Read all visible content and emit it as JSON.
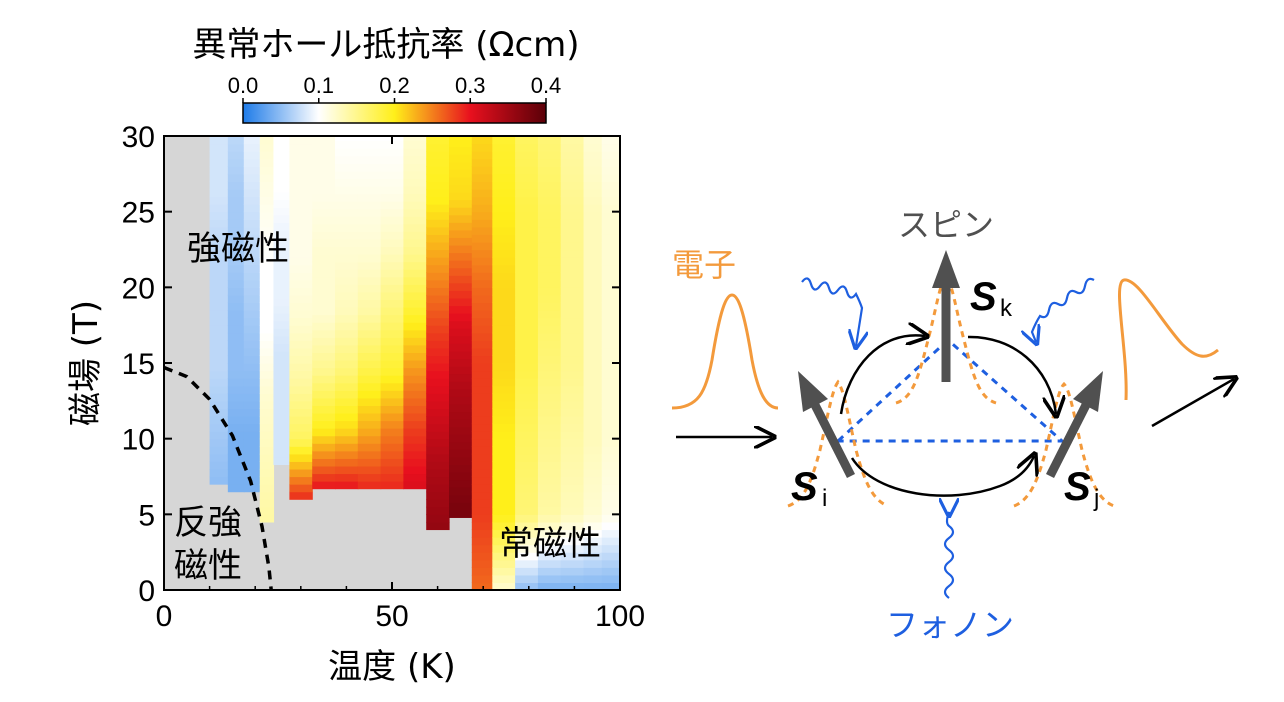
{
  "chart_data": {
    "type": "heatmap",
    "title": "異常ホール抵抗率 (Ωcm)",
    "xlabel": "温度 (K)",
    "ylabel": "磁場 (T)",
    "xlim": [
      0,
      100
    ],
    "ylim": [
      0,
      30
    ],
    "xticks": [
      "0",
      "50",
      "100"
    ],
    "yticks": [
      "0",
      "5",
      "10",
      "15",
      "20",
      "25",
      "30"
    ],
    "colorbar": {
      "range": [
        0.0,
        0.4
      ],
      "ticks": [
        "0.0",
        "0.1",
        "0.2",
        "0.3",
        "0.4"
      ],
      "colors": [
        "#1e7be8",
        "#ffffff",
        "#ffef1a",
        "#e8101e",
        "#5a0008"
      ]
    },
    "regions": {
      "ferromagnetic": "強磁性",
      "antiferro_line1": "反強",
      "antiferro_line2": "磁性",
      "paramagnetic": "常磁性"
    },
    "phase_boundary": [
      [
        0,
        14.7
      ],
      [
        5,
        14.1
      ],
      [
        10,
        12.6
      ],
      [
        15,
        10.2
      ],
      [
        19,
        7.2
      ],
      [
        21.5,
        4.2
      ],
      [
        23,
        1.5
      ],
      [
        23.5,
        0
      ]
    ],
    "columns": [
      {
        "t0": 10,
        "t1": 14,
        "hmin": 7.0,
        "v": [
          0.05,
          0.06,
          0.07,
          0.07,
          0.07,
          0.08,
          0.08
        ]
      },
      {
        "t0": 14,
        "t1": 17.5,
        "hmin": 6.5,
        "v": [
          0.04,
          0.04,
          0.05,
          0.05,
          0.06,
          0.06,
          0.07
        ]
      },
      {
        "t0": 17.5,
        "t1": 21,
        "hmin": 6.5,
        "v": [
          0.04,
          0.04,
          0.05,
          0.06,
          0.07,
          0.08,
          0.09
        ]
      },
      {
        "t0": 21,
        "t1": 24,
        "hmin": 4.5,
        "v": [
          0.14,
          0.13,
          0.12,
          0.1,
          0.1,
          0.11,
          0.12
        ]
      },
      {
        "t0": 24,
        "t1": 27.5,
        "hmin": 8.3,
        "v": [
          0.08,
          0.08,
          0.08,
          0.09,
          0.09,
          0.1,
          0.1
        ]
      },
      {
        "t0": 27.5,
        "t1": 32.5,
        "hmin": 6.0,
        "v": [
          0.29,
          0.17,
          0.14,
          0.12,
          0.11,
          0.11,
          0.11
        ]
      },
      {
        "t0": 32.5,
        "t1": 37.5,
        "hmin": 6.7,
        "v": [
          0.3,
          0.2,
          0.15,
          0.12,
          0.12,
          0.11,
          0.11
        ]
      },
      {
        "t0": 37.5,
        "t1": 42.5,
        "hmin": 6.7,
        "v": [
          0.3,
          0.21,
          0.16,
          0.13,
          0.12,
          0.11,
          0.1
        ]
      },
      {
        "t0": 42.5,
        "t1": 47.5,
        "hmin": 6.7,
        "v": [
          0.29,
          0.23,
          0.18,
          0.14,
          0.12,
          0.11,
          0.1
        ]
      },
      {
        "t0": 47.5,
        "t1": 52.5,
        "hmin": 6.7,
        "v": [
          0.29,
          0.25,
          0.19,
          0.16,
          0.13,
          0.11,
          0.1
        ]
      },
      {
        "t0": 52.5,
        "t1": 57.5,
        "hmin": 6.7,
        "v": [
          0.31,
          0.28,
          0.24,
          0.19,
          0.15,
          0.13,
          0.12
        ]
      },
      {
        "t0": 57.5,
        "t1": 62.5,
        "hmin": 4.0,
        "v": [
          0.36,
          0.34,
          0.31,
          0.28,
          0.24,
          0.2,
          0.19
        ]
      },
      {
        "t0": 62.5,
        "t1": 67.5,
        "hmin": 4.8,
        "v": [
          0.38,
          0.36,
          0.34,
          0.31,
          0.26,
          0.21,
          0.2
        ]
      },
      {
        "t0": 67.5,
        "t1": 72,
        "hmin": 0.0,
        "v": [
          0.26,
          0.28,
          0.28,
          0.28,
          0.26,
          0.23,
          0.21
        ]
      },
      {
        "t0": 72,
        "t1": 77,
        "hmin": 0.0,
        "v": [
          0.12,
          0.2,
          0.2,
          0.21,
          0.21,
          0.2,
          0.19
        ]
      },
      {
        "t0": 77,
        "t1": 82,
        "hmin": 0.0,
        "v": [
          0.05,
          0.16,
          0.17,
          0.18,
          0.18,
          0.18,
          0.17
        ]
      },
      {
        "t0": 82,
        "t1": 87,
        "hmin": 0.0,
        "v": [
          0.04,
          0.14,
          0.15,
          0.16,
          0.17,
          0.17,
          0.16
        ]
      },
      {
        "t0": 87,
        "t1": 92,
        "hmin": 0.0,
        "v": [
          0.04,
          0.13,
          0.14,
          0.15,
          0.15,
          0.15,
          0.14
        ]
      },
      {
        "t0": 92,
        "t1": 96,
        "hmin": 0.0,
        "v": [
          0.04,
          0.12,
          0.13,
          0.13,
          0.13,
          0.13,
          0.12
        ]
      },
      {
        "t0": 96,
        "t1": 100,
        "hmin": 0.0,
        "v": [
          0.04,
          0.11,
          0.12,
          0.12,
          0.12,
          0.12,
          0.11
        ]
      }
    ]
  },
  "diagram": {
    "spin_label": "スピン",
    "electron_label": "電子",
    "phonon_label": "フォノン",
    "spin_k_letter": "S",
    "spin_k_sub": "k",
    "spin_i_letter": "S",
    "spin_i_sub": "i",
    "spin_j_letter": "S",
    "spin_j_sub": "j",
    "colors": {
      "spin": "#505050",
      "electron": "#f39a3c",
      "phonon": "#1e5fe0",
      "path": "#000000",
      "triangle": "#1e5fe0"
    }
  }
}
